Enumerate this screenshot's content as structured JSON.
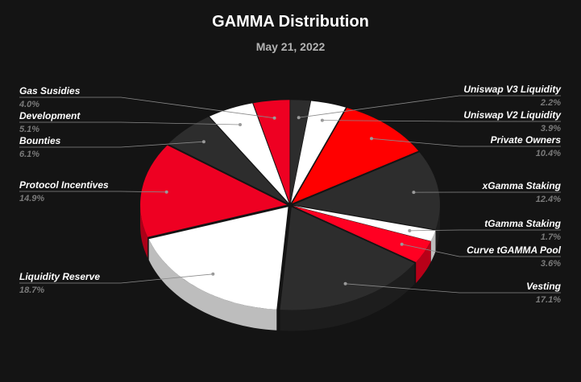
{
  "chart_data": {
    "type": "pie",
    "title": "GAMMA Distribution",
    "subtitle": "May 21, 2022",
    "slices": [
      {
        "name": "Uniswap V3 Liquidity",
        "value": 2.2,
        "label": "2.2%",
        "color": "#2d2d2d"
      },
      {
        "name": "Uniswap V2 Liquidity",
        "value": 3.9,
        "label": "3.9%",
        "color": "#ffffff"
      },
      {
        "name": "Private Owners",
        "value": 10.4,
        "label": "10.4%",
        "color": "#ff0000"
      },
      {
        "name": "xGamma Staking",
        "value": 12.4,
        "label": "12.4%",
        "color": "#2d2d2d"
      },
      {
        "name": "tGamma Staking",
        "value": 1.7,
        "label": "1.7%",
        "color": "#ffffff"
      },
      {
        "name": "Curve tGAMMA Pool",
        "value": 3.6,
        "label": "3.6%",
        "color": "#ff0022"
      },
      {
        "name": "Vesting",
        "value": 17.1,
        "label": "17.1%",
        "color": "#2d2d2d"
      },
      {
        "name": "Liquidity Reserve",
        "value": 18.7,
        "label": "18.7%",
        "color": "#ffffff"
      },
      {
        "name": "Protocol Incentives",
        "value": 14.9,
        "label": "14.9%",
        "color": "#ee0022"
      },
      {
        "name": "Bounties",
        "value": 6.1,
        "label": "6.1%",
        "color": "#2d2d2d"
      },
      {
        "name": "Development",
        "value": 5.1,
        "label": "5.1%",
        "color": "#ffffff"
      },
      {
        "name": "Gas Susidies",
        "value": 4.0,
        "label": "4.0%",
        "color": "#ee0022"
      }
    ]
  }
}
